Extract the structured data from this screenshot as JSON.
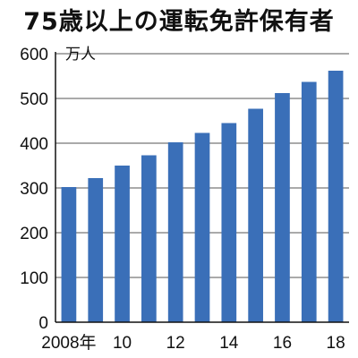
{
  "chart_data": {
    "type": "bar",
    "title": "75歳以上の運転免許保有者",
    "unit_label": "万人",
    "categories": [
      "2008",
      "2009",
      "2010",
      "2011",
      "2012",
      "2013",
      "2014",
      "2015",
      "2016",
      "2017",
      "2018"
    ],
    "tick_labels": [
      "2008年",
      "",
      "10",
      "",
      "12",
      "",
      "14",
      "",
      "16",
      "",
      "18"
    ],
    "values": [
      302,
      322,
      350,
      373,
      402,
      423,
      445,
      477,
      512,
      537,
      562
    ],
    "ylim": [
      0,
      600
    ],
    "yticks": [
      0,
      100,
      200,
      300,
      400,
      500,
      600
    ],
    "grid": "horizontal",
    "bar_color": "#3a6fb8"
  }
}
